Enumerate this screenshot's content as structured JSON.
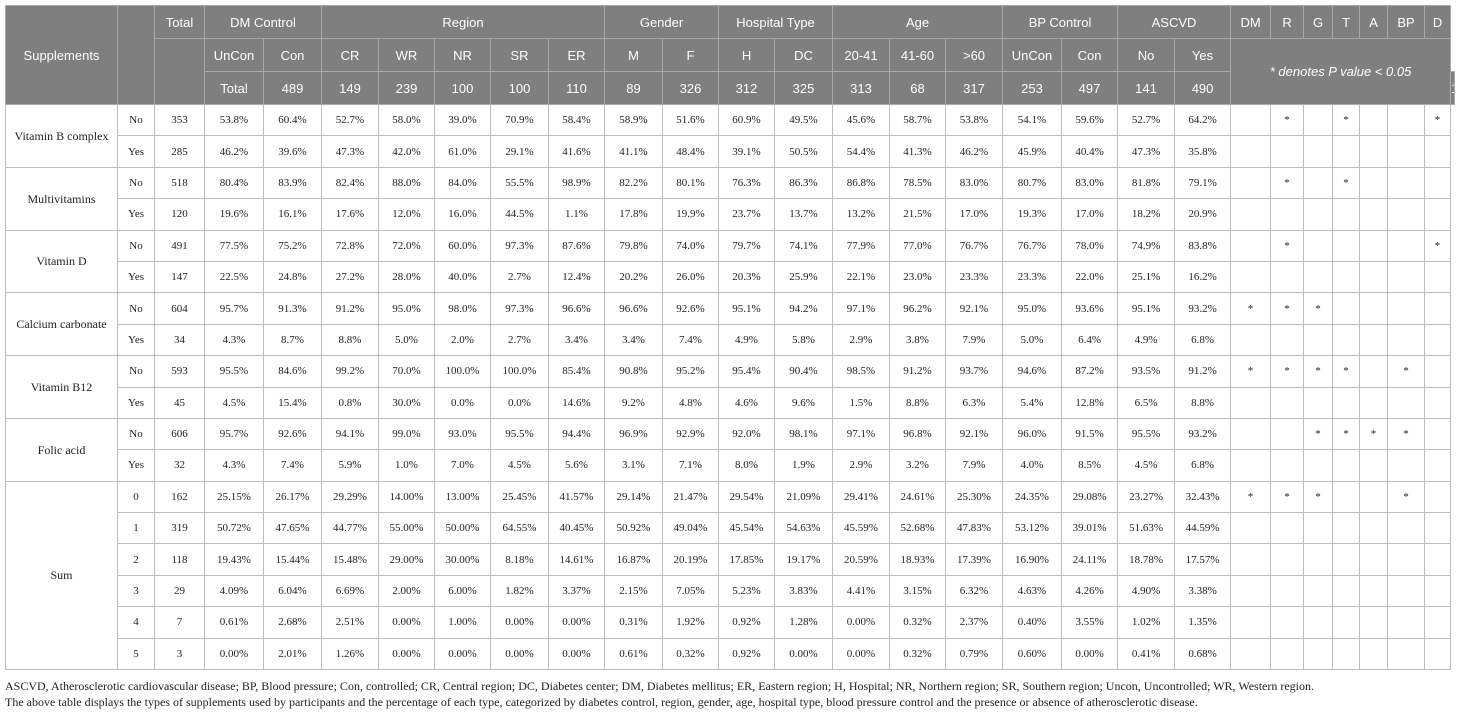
{
  "header": {
    "supplements": "Supplements",
    "total": "Total",
    "groups": [
      "DM Control",
      "Region",
      "Gender",
      "Hospital Type",
      "Age",
      "BP Control",
      "ASCVD"
    ],
    "subgroups": [
      "UnCon",
      "Con",
      "CR",
      "WR",
      "NR",
      "SR",
      "ER",
      "M",
      "F",
      "H",
      "DC",
      "20-41",
      "41-60",
      ">60",
      "UnCon",
      "Con",
      "No",
      "Yes"
    ],
    "total_label": "Total",
    "totals": [
      "489",
      "149",
      "239",
      "100",
      "100",
      "110",
      "89",
      "326",
      "312",
      "325",
      "313",
      "68",
      "317",
      "253",
      "497",
      "141",
      "490",
      "148"
    ],
    "sig_columns": [
      "DM",
      "R",
      "G",
      "T",
      "A",
      "BP",
      "D"
    ],
    "note": "* denotes P value < 0.05"
  },
  "supplement_rows": [
    {
      "name": "Vitamin B complex",
      "rows": [
        {
          "label": "No",
          "total": "353",
          "values": [
            "53.8%",
            "60.4%",
            "52.7%",
            "58.0%",
            "39.0%",
            "70.9%",
            "58.4%",
            "58.9%",
            "51.6%",
            "60.9%",
            "49.5%",
            "45.6%",
            "58.7%",
            "53.8%",
            "54.1%",
            "59.6%",
            "52.7%",
            "64.2%"
          ],
          "sig": [
            "",
            "*",
            "",
            "*",
            "",
            "",
            "*"
          ]
        },
        {
          "label": "Yes",
          "total": "285",
          "values": [
            "46.2%",
            "39.6%",
            "47.3%",
            "42.0%",
            "61.0%",
            "29.1%",
            "41.6%",
            "41.1%",
            "48.4%",
            "39.1%",
            "50.5%",
            "54.4%",
            "41.3%",
            "46.2%",
            "45.9%",
            "40.4%",
            "47.3%",
            "35.8%"
          ],
          "sig": [
            "",
            "",
            "",
            "",
            "",
            "",
            ""
          ]
        }
      ]
    },
    {
      "name": "Multivitamins",
      "rows": [
        {
          "label": "No",
          "total": "518",
          "values": [
            "80.4%",
            "83.9%",
            "82.4%",
            "88.0%",
            "84.0%",
            "55.5%",
            "98.9%",
            "82.2%",
            "80.1%",
            "76.3%",
            "86.3%",
            "86.8%",
            "78.5%",
            "83.0%",
            "80.7%",
            "83.0%",
            "81.8%",
            "79.1%"
          ],
          "sig": [
            "",
            "*",
            "",
            "*",
            "",
            "",
            ""
          ]
        },
        {
          "label": "Yes",
          "total": "120",
          "values": [
            "19.6%",
            "16.1%",
            "17.6%",
            "12.0%",
            "16.0%",
            "44.5%",
            "1.1%",
            "17.8%",
            "19.9%",
            "23.7%",
            "13.7%",
            "13.2%",
            "21.5%",
            "17.0%",
            "19.3%",
            "17.0%",
            "18.2%",
            "20.9%"
          ],
          "sig": [
            "",
            "",
            "",
            "",
            "",
            "",
            ""
          ]
        }
      ]
    },
    {
      "name": "Vitamin D",
      "rows": [
        {
          "label": "No",
          "total": "491",
          "values": [
            "77.5%",
            "75.2%",
            "72.8%",
            "72.0%",
            "60.0%",
            "97.3%",
            "87.6%",
            "79.8%",
            "74.0%",
            "79.7%",
            "74.1%",
            "77.9%",
            "77.0%",
            "76.7%",
            "76.7%",
            "78.0%",
            "74.9%",
            "83.8%"
          ],
          "sig": [
            "",
            "*",
            "",
            "",
            "",
            "",
            "*"
          ]
        },
        {
          "label": "Yes",
          "total": "147",
          "values": [
            "22.5%",
            "24.8%",
            "27.2%",
            "28.0%",
            "40.0%",
            "2.7%",
            "12.4%",
            "20.2%",
            "26.0%",
            "20.3%",
            "25.9%",
            "22.1%",
            "23.0%",
            "23.3%",
            "23.3%",
            "22.0%",
            "25.1%",
            "16.2%"
          ],
          "sig": [
            "",
            "",
            "",
            "",
            "",
            "",
            ""
          ]
        }
      ]
    },
    {
      "name": "Calcium carbonate",
      "rows": [
        {
          "label": "No",
          "total": "604",
          "values": [
            "95.7%",
            "91.3%",
            "91.2%",
            "95.0%",
            "98.0%",
            "97.3%",
            "96.6%",
            "96.6%",
            "92.6%",
            "95.1%",
            "94.2%",
            "97.1%",
            "96.2%",
            "92.1%",
            "95.0%",
            "93.6%",
            "95.1%",
            "93.2%"
          ],
          "sig": [
            "*",
            "*",
            "*",
            "",
            "",
            "",
            ""
          ]
        },
        {
          "label": "Yes",
          "total": "34",
          "values": [
            "4.3%",
            "8.7%",
            "8.8%",
            "5.0%",
            "2.0%",
            "2.7%",
            "3.4%",
            "3.4%",
            "7.4%",
            "4.9%",
            "5.8%",
            "2.9%",
            "3.8%",
            "7.9%",
            "5.0%",
            "6.4%",
            "4.9%",
            "6.8%"
          ],
          "sig": [
            "",
            "",
            "",
            "",
            "",
            "",
            ""
          ]
        }
      ]
    },
    {
      "name": "Vitamin B12",
      "rows": [
        {
          "label": "No",
          "total": "593",
          "values": [
            "95.5%",
            "84.6%",
            "99.2%",
            "70.0%",
            "100.0%",
            "100.0%",
            "85.4%",
            "90.8%",
            "95.2%",
            "95.4%",
            "90.4%",
            "98.5%",
            "91.2%",
            "93.7%",
            "94.6%",
            "87.2%",
            "93.5%",
            "91.2%"
          ],
          "sig": [
            "*",
            "*",
            "*",
            "*",
            "",
            "*",
            ""
          ]
        },
        {
          "label": "Yes",
          "total": "45",
          "values": [
            "4.5%",
            "15.4%",
            "0.8%",
            "30.0%",
            "0.0%",
            "0.0%",
            "14.6%",
            "9.2%",
            "4.8%",
            "4.6%",
            "9.6%",
            "1.5%",
            "8.8%",
            "6.3%",
            "5.4%",
            "12.8%",
            "6.5%",
            "8.8%"
          ],
          "sig": [
            "",
            "",
            "",
            "",
            "",
            "",
            ""
          ]
        }
      ]
    },
    {
      "name": "Folic acid",
      "rows": [
        {
          "label": "No",
          "total": "606",
          "values": [
            "95.7%",
            "92.6%",
            "94.1%",
            "99.0%",
            "93.0%",
            "95.5%",
            "94.4%",
            "96.9%",
            "92.9%",
            "92.0%",
            "98.1%",
            "97.1%",
            "96.8%",
            "92.1%",
            "96.0%",
            "91.5%",
            "95.5%",
            "93.2%"
          ],
          "sig": [
            "",
            "",
            "*",
            "*",
            "*",
            "*",
            ""
          ]
        },
        {
          "label": "Yes",
          "total": "32",
          "values": [
            "4.3%",
            "7.4%",
            "5.9%",
            "1.0%",
            "7.0%",
            "4.5%",
            "5.6%",
            "3.1%",
            "7.1%",
            "8.0%",
            "1.9%",
            "2.9%",
            "3.2%",
            "7.9%",
            "4.0%",
            "8.5%",
            "4.5%",
            "6.8%"
          ],
          "sig": [
            "",
            "",
            "",
            "",
            "",
            "",
            ""
          ]
        }
      ]
    }
  ],
  "sum": {
    "name": "Sum",
    "rows": [
      {
        "label": "0",
        "total": "162",
        "values": [
          "25.15%",
          "26.17%",
          "29.29%",
          "14.00%",
          "13.00%",
          "25.45%",
          "41.57%",
          "29.14%",
          "21.47%",
          "29.54%",
          "21.09%",
          "29.41%",
          "24.61%",
          "25.30%",
          "24.35%",
          "29.08%",
          "23.27%",
          "32.43%"
        ],
        "sig": [
          "*",
          "*",
          "*",
          "",
          "",
          "*",
          ""
        ]
      },
      {
        "label": "1",
        "total": "319",
        "values": [
          "50.72%",
          "47.65%",
          "44.77%",
          "55.00%",
          "50.00%",
          "64.55%",
          "40.45%",
          "50.92%",
          "49.04%",
          "45.54%",
          "54.63%",
          "45.59%",
          "52.68%",
          "47.83%",
          "53.12%",
          "39.01%",
          "51.63%",
          "44.59%"
        ],
        "sig": [
          "",
          "",
          "",
          "",
          "",
          "",
          ""
        ]
      },
      {
        "label": "2",
        "total": "118",
        "values": [
          "19.43%",
          "15.44%",
          "15.48%",
          "29.00%",
          "30.00%",
          "8.18%",
          "14.61%",
          "16.87%",
          "20.19%",
          "17.85%",
          "19.17%",
          "20.59%",
          "18.93%",
          "17.39%",
          "16.90%",
          "24.11%",
          "18.78%",
          "17.57%"
        ],
        "sig": [
          "",
          "",
          "",
          "",
          "",
          "",
          ""
        ]
      },
      {
        "label": "3",
        "total": "29",
        "values": [
          "4.09%",
          "6.04%",
          "6.69%",
          "2.00%",
          "6.00%",
          "1.82%",
          "3.37%",
          "2.15%",
          "7.05%",
          "5.23%",
          "3.83%",
          "4.41%",
          "3.15%",
          "6.32%",
          "4.63%",
          "4.26%",
          "4.90%",
          "3.38%"
        ],
        "sig": [
          "",
          "",
          "",
          "",
          "",
          "",
          ""
        ]
      },
      {
        "label": "4",
        "total": "7",
        "values": [
          "0.61%",
          "2.68%",
          "2.51%",
          "0.00%",
          "1.00%",
          "0.00%",
          "0.00%",
          "0.31%",
          "1.92%",
          "0.92%",
          "1.28%",
          "0.00%",
          "0.32%",
          "2.37%",
          "0.40%",
          "3.55%",
          "1.02%",
          "1.35%"
        ],
        "sig": [
          "",
          "",
          "",
          "",
          "",
          "",
          ""
        ]
      },
      {
        "label": "5",
        "total": "3",
        "values": [
          "0.00%",
          "2.01%",
          "1.26%",
          "0.00%",
          "0.00%",
          "0.00%",
          "0.00%",
          "0.61%",
          "0.32%",
          "0.92%",
          "0.00%",
          "0.00%",
          "0.32%",
          "0.79%",
          "0.60%",
          "0.00%",
          "0.41%",
          "0.68%"
        ],
        "sig": [
          "",
          "",
          "",
          "",
          "",
          "",
          ""
        ]
      }
    ]
  },
  "footnote": {
    "line1": "ASCVD, Atherosclerotic cardiovascular disease; BP, Blood pressure; Con, controlled; CR, Central region; DC, Diabetes center; DM, Diabetes mellitus; ER, Eastern region; H, Hospital; NR, Northern region; SR, Southern region; Uncon, Uncontrolled; WR, Western region.",
    "line2": "The above table displays the types of supplements used by participants and the percentage of each type, categorized by diabetes control, region, gender, age, hospital type, blood pressure control and the presence or absence of atherosclerotic disease."
  }
}
